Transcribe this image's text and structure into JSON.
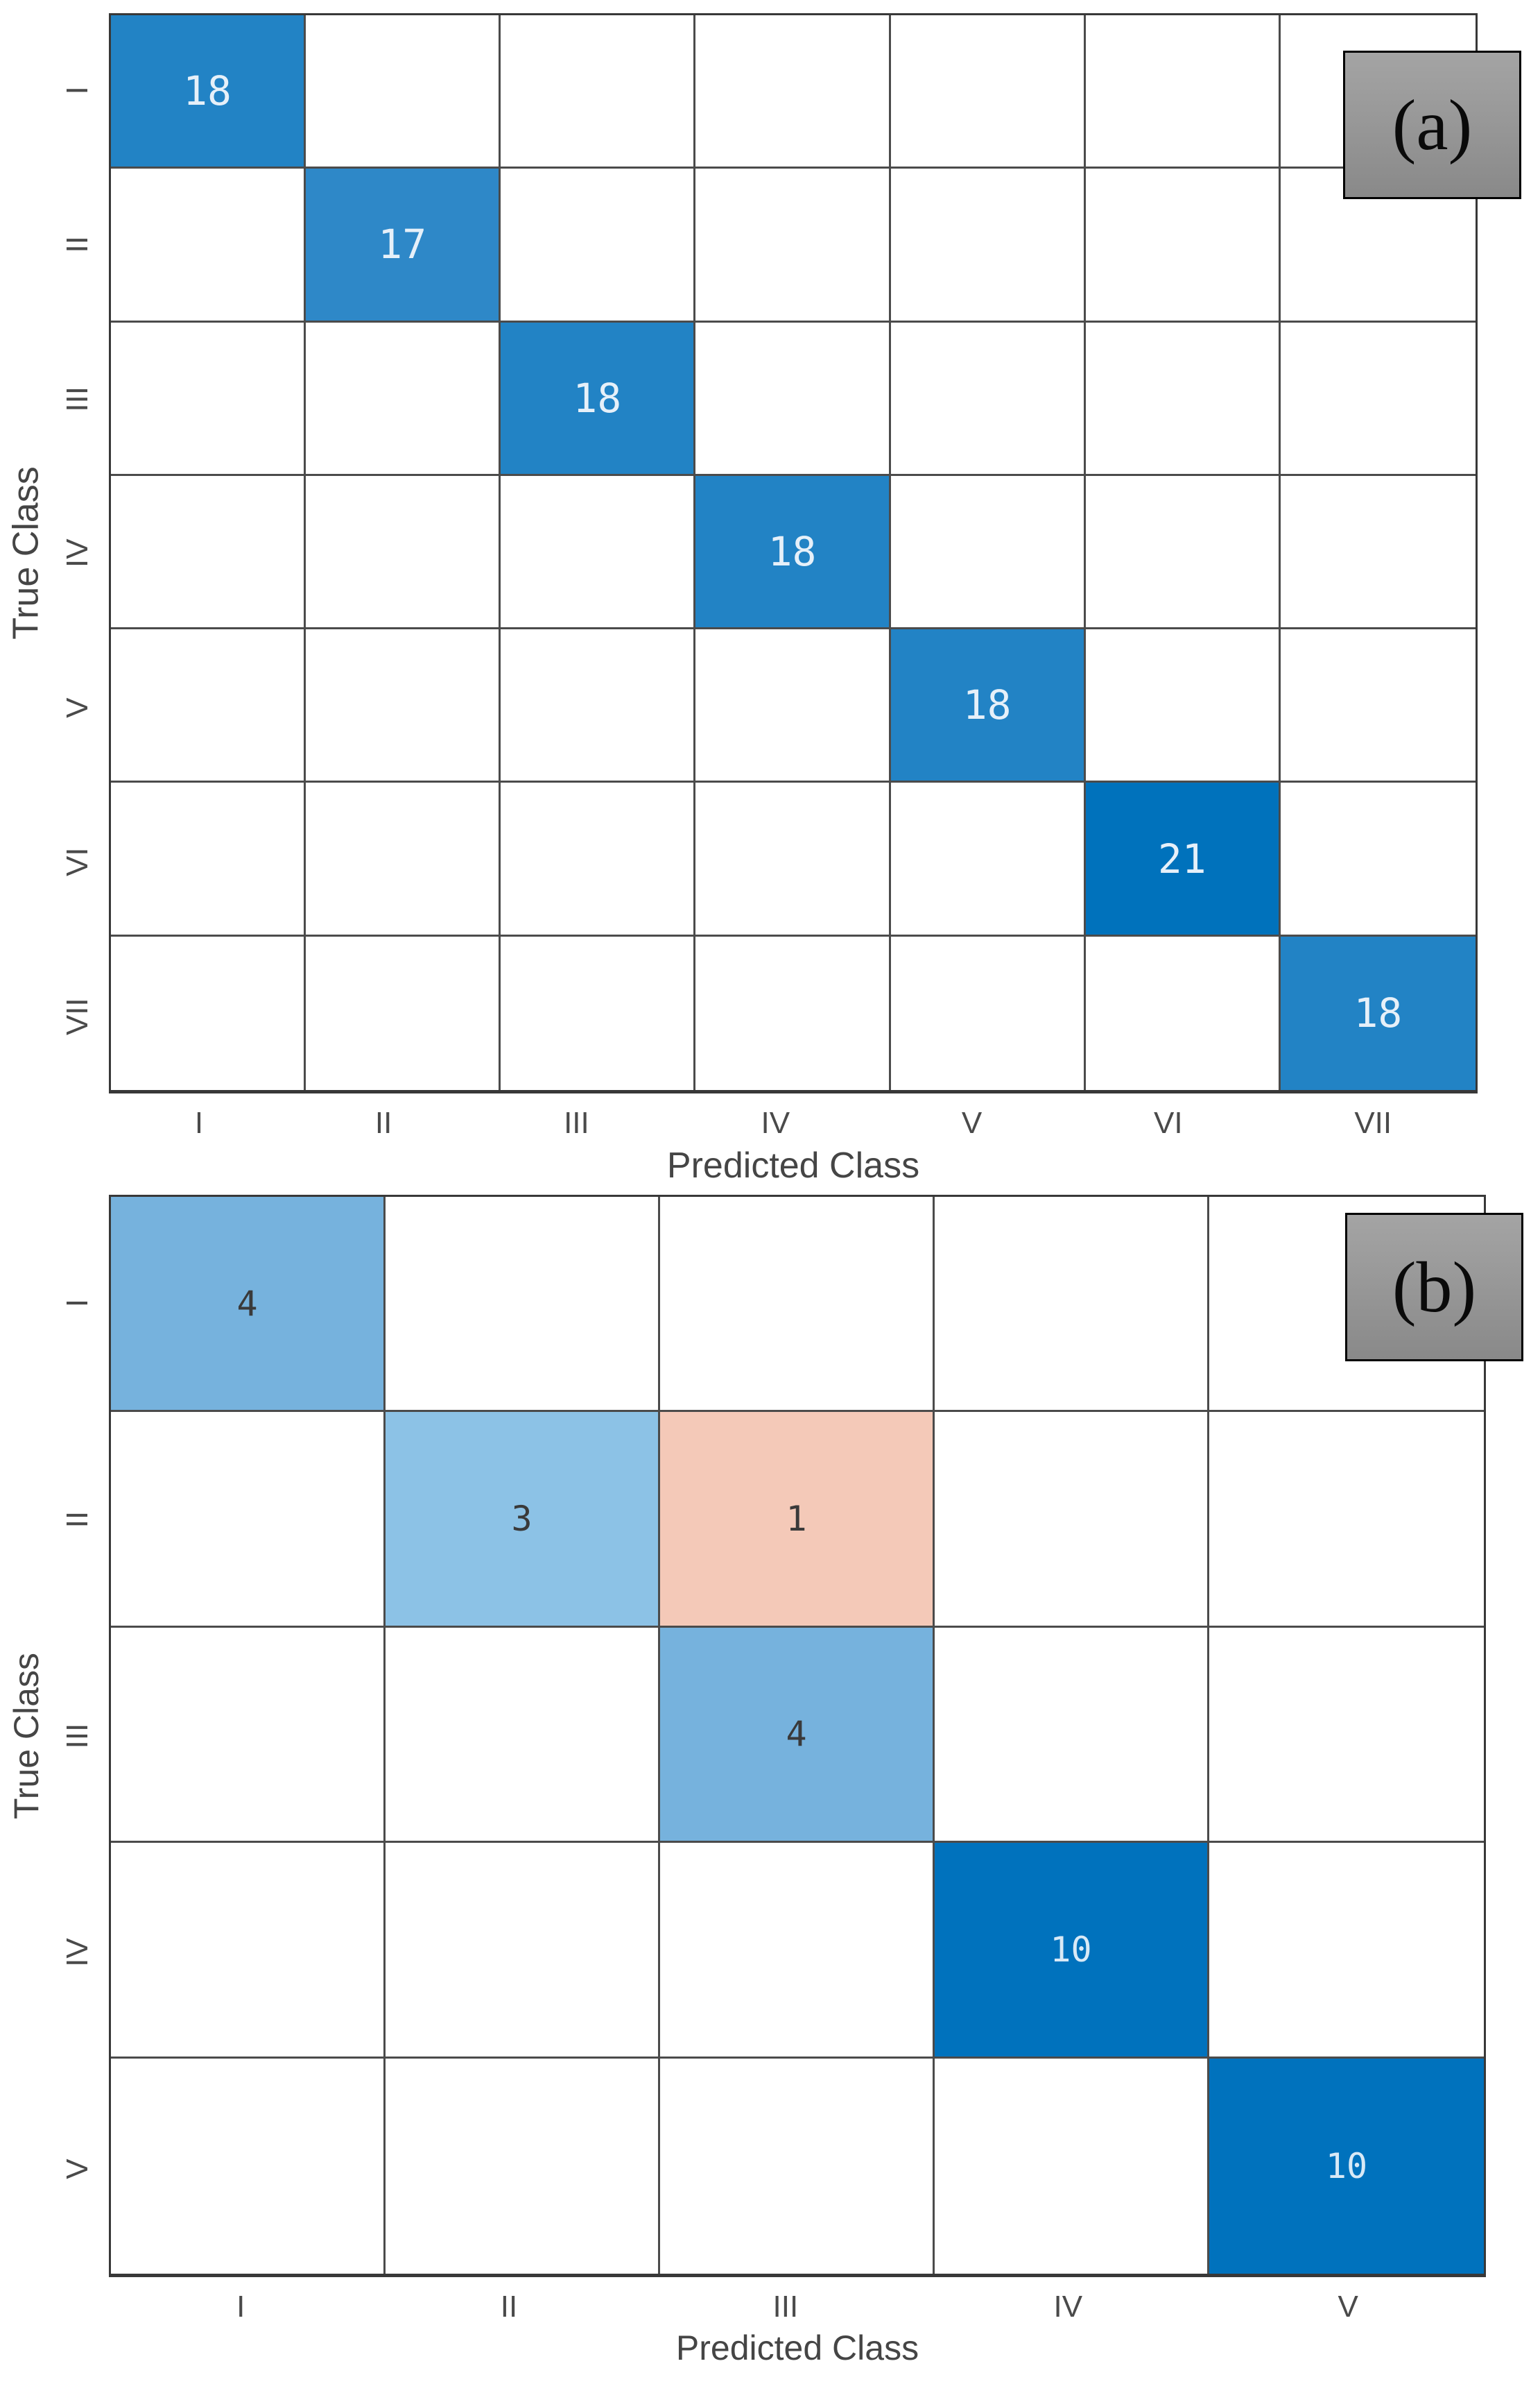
{
  "figure": {
    "panels": [
      {
        "tag": "(a)",
        "xlabel": "Predicted Class",
        "ylabel": "True Class",
        "classes": [
          "I",
          "II",
          "III",
          "IV",
          "V",
          "VI",
          "VII"
        ],
        "cells": [
          {
            "row": 0,
            "col": 0,
            "value": "18",
            "bg": "#2283C5",
            "fg": "#E6F0F9"
          },
          {
            "row": 1,
            "col": 1,
            "value": "17",
            "bg": "#2E88C8",
            "fg": "#E6F0F9"
          },
          {
            "row": 2,
            "col": 2,
            "value": "18",
            "bg": "#2283C5",
            "fg": "#E6F0F9"
          },
          {
            "row": 3,
            "col": 3,
            "value": "18",
            "bg": "#2283C5",
            "fg": "#E6F0F9"
          },
          {
            "row": 4,
            "col": 4,
            "value": "18",
            "bg": "#2283C5",
            "fg": "#E6F0F9"
          },
          {
            "row": 5,
            "col": 5,
            "value": "21",
            "bg": "#0072BC",
            "fg": "#E6F0F9"
          },
          {
            "row": 6,
            "col": 6,
            "value": "18",
            "bg": "#2283C5",
            "fg": "#E6F0F9"
          }
        ]
      },
      {
        "tag": "(b)",
        "xlabel": "Predicted Class",
        "ylabel": "True Class",
        "classes": [
          "I",
          "II",
          "III",
          "IV",
          "V"
        ],
        "cells": [
          {
            "row": 0,
            "col": 0,
            "value": "4",
            "bg": "#76B2DD",
            "fg": "#3A3A3A"
          },
          {
            "row": 1,
            "col": 1,
            "value": "3",
            "bg": "#8CC2E6",
            "fg": "#3A3A3A"
          },
          {
            "row": 1,
            "col": 2,
            "value": "1",
            "bg": "#F4C9B8",
            "fg": "#3A3A3A"
          },
          {
            "row": 2,
            "col": 2,
            "value": "4",
            "bg": "#76B2DD",
            "fg": "#3A3A3A"
          },
          {
            "row": 3,
            "col": 3,
            "value": "10",
            "bg": "#0072BD",
            "fg": "#D8E9F6"
          },
          {
            "row": 4,
            "col": 4,
            "value": "10",
            "bg": "#0072BD",
            "fg": "#D8E9F6"
          }
        ]
      }
    ]
  },
  "chart_data": [
    {
      "type": "heatmap",
      "subtype": "confusion-matrix",
      "panel": "(a)",
      "title": "",
      "xlabel": "Predicted Class",
      "ylabel": "True Class",
      "classes": [
        "I",
        "II",
        "III",
        "IV",
        "V",
        "VI",
        "VII"
      ],
      "matrix": [
        [
          18,
          0,
          0,
          0,
          0,
          0,
          0
        ],
        [
          0,
          17,
          0,
          0,
          0,
          0,
          0
        ],
        [
          0,
          0,
          18,
          0,
          0,
          0,
          0
        ],
        [
          0,
          0,
          0,
          18,
          0,
          0,
          0
        ],
        [
          0,
          0,
          0,
          0,
          18,
          0,
          0
        ],
        [
          0,
          0,
          0,
          0,
          0,
          21,
          0
        ],
        [
          0,
          0,
          0,
          0,
          0,
          0,
          18
        ]
      ]
    },
    {
      "type": "heatmap",
      "subtype": "confusion-matrix",
      "panel": "(b)",
      "title": "",
      "xlabel": "Predicted Class",
      "ylabel": "True Class",
      "classes": [
        "I",
        "II",
        "III",
        "IV",
        "V"
      ],
      "matrix": [
        [
          4,
          0,
          0,
          0,
          0
        ],
        [
          0,
          3,
          1,
          0,
          0
        ],
        [
          0,
          0,
          4,
          0,
          0
        ],
        [
          0,
          0,
          0,
          10,
          0
        ],
        [
          0,
          0,
          0,
          0,
          10
        ]
      ]
    }
  ],
  "colors": {
    "diagonal_full_blue": "#0072BD",
    "diagonal_medium_blue": "#2283C5",
    "diagonal_light_blue_4": "#76B2DD",
    "diagonal_light_blue_3": "#8CC2E6",
    "off_diagonal_salmon": "#F4C9B8",
    "grid_line": "#4B4B4B",
    "axis_text": "#4A4A4A",
    "tag_box_gray_top": "#A4A4A4",
    "tag_box_gray_bottom": "#898989"
  }
}
